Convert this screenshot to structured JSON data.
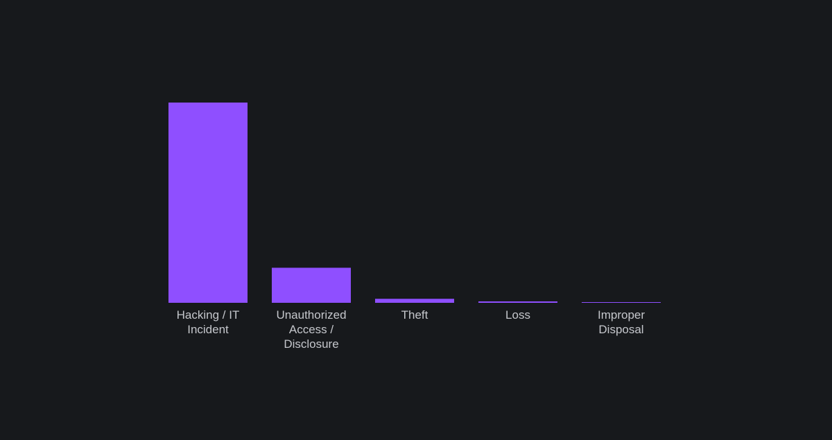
{
  "colors": {
    "background": "#17191c",
    "bar": "#8f4fff",
    "label": "#c5c7cc"
  },
  "chart_data": {
    "type": "bar",
    "categories": [
      "Hacking / IT Incident",
      "Unauthorized Access / Disclosure",
      "Theft",
      "Loss",
      "Improper Disposal"
    ],
    "category_label_lines": [
      [
        "Hacking / IT",
        "Incident"
      ],
      [
        "Unauthorized",
        "Access /",
        "Disclosure"
      ],
      [
        "Theft"
      ],
      [
        "Loss"
      ],
      [
        "Improper",
        "Disposal"
      ]
    ],
    "values": [
      1000,
      175,
      20,
      7,
      3
    ],
    "ylim": [
      0,
      1000
    ],
    "grid": false,
    "legend": "none",
    "title": "",
    "xlabel": "",
    "ylabel": ""
  }
}
